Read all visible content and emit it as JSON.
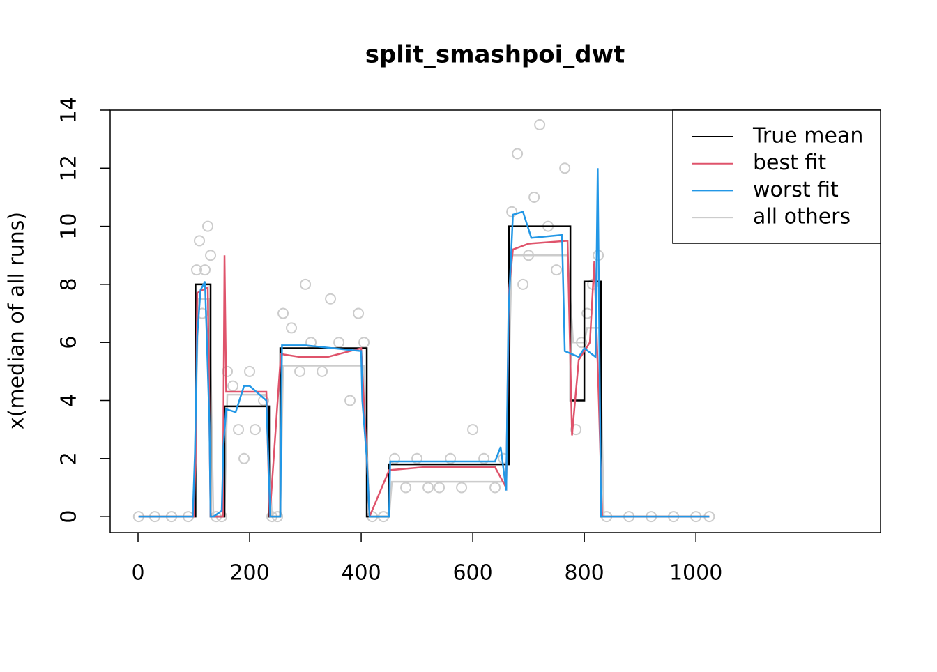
{
  "chart_data": {
    "type": "line",
    "title": "split_smashpoi_dwt",
    "y_label": "x(median of all runs)",
    "xlim": [
      -50,
      1331
    ],
    "ylim": [
      -0.55,
      14
    ],
    "xticks": [
      0,
      200,
      400,
      600,
      800,
      1000
    ],
    "yticks": [
      0,
      2,
      4,
      6,
      8,
      10,
      12,
      14
    ],
    "legend_position": "top-right",
    "series": [
      {
        "name": "all others",
        "color": "#cccccc",
        "x": [
          1,
          100,
          108,
          128,
          135,
          155,
          160,
          230,
          240,
          255,
          260,
          405,
          415,
          450,
          455,
          660,
          670,
          770,
          780,
          800,
          805,
          828,
          835,
          1024
        ],
        "values": [
          0,
          0,
          7.5,
          7.5,
          0,
          0,
          4.2,
          4.2,
          0,
          0,
          5.2,
          5.2,
          0,
          0,
          1.2,
          1.2,
          9,
          9,
          6,
          6,
          6.5,
          6.5,
          0,
          0
        ]
      },
      {
        "name": "True mean",
        "color": "#000000",
        "x": [
          1,
          103,
          103,
          130,
          130,
          155,
          155,
          235,
          235,
          255,
          255,
          410,
          410,
          450,
          450,
          665,
          665,
          775,
          775,
          800,
          800,
          830,
          830,
          1024
        ],
        "values": [
          0,
          0,
          8,
          8,
          0,
          0,
          3.8,
          3.8,
          0,
          0,
          5.8,
          5.8,
          0,
          0,
          1.8,
          1.8,
          10,
          10,
          4,
          4,
          8.1,
          8.1,
          0,
          0
        ]
      },
      {
        "name": "best fit",
        "color": "#df536b",
        "x": [
          1,
          100,
          103,
          106,
          115,
          125,
          130,
          135,
          152,
          155,
          158,
          230,
          236,
          256,
          290,
          340,
          400,
          410,
          415,
          450,
          510,
          640,
          660,
          665,
          672,
          700,
          770,
          778,
          790,
          810,
          818,
          826,
          832,
          1024
        ],
        "values": [
          0,
          0,
          2,
          7.7,
          7.8,
          7.9,
          0,
          0,
          0,
          9,
          4.3,
          4.3,
          0,
          5.6,
          5.5,
          5.5,
          5.8,
          2,
          0,
          1.6,
          1.7,
          1.7,
          1,
          7.8,
          9.2,
          9.4,
          9.5,
          2.8,
          5.4,
          6,
          8.8,
          4,
          0,
          0
        ]
      },
      {
        "name": "worst fit",
        "color": "#2297e6",
        "x": [
          1,
          98,
          102,
          106,
          112,
          120,
          128,
          130,
          135,
          150,
          153,
          158,
          175,
          190,
          200,
          230,
          237,
          240,
          255,
          258,
          300,
          400,
          402,
          410,
          415,
          450,
          452,
          640,
          650,
          660,
          664,
          672,
          690,
          705,
          760,
          765,
          790,
          800,
          820,
          824,
          830,
          1024
        ],
        "values": [
          0,
          0,
          2.2,
          6.2,
          7.8,
          8.1,
          3.2,
          0,
          0,
          0.2,
          2.4,
          3.7,
          3.6,
          4.5,
          4.5,
          4,
          0,
          0,
          0,
          5.9,
          5.9,
          5.7,
          4,
          2,
          0,
          0,
          1.9,
          1.9,
          2.4,
          0.9,
          7,
          10.4,
          10.5,
          9.6,
          9.7,
          5.7,
          5.5,
          5.8,
          5.5,
          12,
          0,
          0
        ]
      }
    ],
    "points": {
      "color": "#cccccc",
      "x": [
        1,
        30,
        60,
        90,
        105,
        110,
        115,
        120,
        125,
        130,
        140,
        150,
        160,
        170,
        180,
        190,
        200,
        210,
        225,
        240,
        250,
        260,
        275,
        290,
        300,
        310,
        330,
        345,
        360,
        380,
        395,
        405,
        420,
        440,
        460,
        480,
        500,
        520,
        540,
        560,
        580,
        600,
        620,
        640,
        655,
        670,
        680,
        690,
        700,
        710,
        720,
        735,
        750,
        765,
        785,
        795,
        805,
        815,
        825,
        840,
        880,
        920,
        960,
        1000,
        1024
      ],
      "y": [
        0,
        0,
        0,
        0,
        8.5,
        9.5,
        7,
        8.5,
        10,
        9,
        0,
        0,
        5,
        4.5,
        3,
        2,
        5,
        3,
        4,
        0,
        0,
        7,
        6.5,
        5,
        8,
        6,
        5,
        7.5,
        6,
        4,
        7,
        6,
        0,
        0,
        2,
        1,
        2,
        1,
        1,
        2,
        1,
        3,
        2,
        1,
        2,
        10.5,
        12.5,
        8,
        9,
        11,
        13.5,
        10,
        8.5,
        12,
        3,
        6,
        7,
        8,
        9,
        0,
        0,
        0,
        0,
        0,
        0
      ]
    }
  }
}
